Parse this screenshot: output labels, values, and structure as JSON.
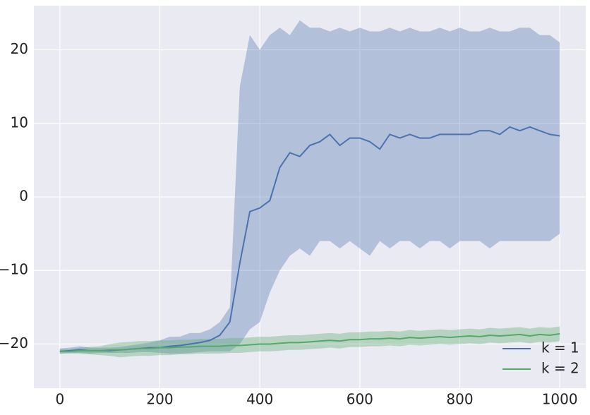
{
  "chart_data": {
    "type": "line",
    "x": [
      0,
      20,
      40,
      60,
      80,
      100,
      120,
      140,
      160,
      180,
      200,
      220,
      240,
      260,
      280,
      300,
      320,
      340,
      360,
      380,
      400,
      420,
      440,
      460,
      480,
      500,
      520,
      540,
      560,
      580,
      600,
      620,
      640,
      660,
      680,
      700,
      720,
      740,
      760,
      780,
      800,
      820,
      840,
      860,
      880,
      900,
      920,
      940,
      960,
      980,
      1000
    ],
    "series": [
      {
        "name": "k = 1",
        "color": "#4c72b0",
        "values": [
          -21,
          -20.9,
          -20.8,
          -20.9,
          -20.9,
          -20.9,
          -20.8,
          -20.7,
          -20.6,
          -20.5,
          -20.5,
          -20.3,
          -20.2,
          -20,
          -19.8,
          -19.5,
          -18.8,
          -17,
          -9,
          -2,
          -1.5,
          -0.5,
          4,
          6,
          5.5,
          7,
          7.5,
          8.5,
          7,
          8,
          8,
          7.5,
          6.5,
          8.5,
          8,
          8.5,
          8,
          8,
          8.5,
          8.5,
          8.5,
          8.5,
          9,
          9,
          8.5,
          9.5,
          9,
          9.5,
          9,
          8.5,
          8.3
        ],
        "upper": [
          -20.6,
          -20.5,
          -20.3,
          -20.5,
          -20.5,
          -20.5,
          -20.4,
          -20.2,
          -20,
          -19.8,
          -19.5,
          -19,
          -19,
          -18.5,
          -18.5,
          -18,
          -17,
          -15,
          15,
          22,
          20,
          22,
          23,
          22,
          24,
          23,
          23,
          22.5,
          23,
          22.5,
          23,
          22.5,
          22.5,
          23,
          22.5,
          23,
          22.5,
          22.5,
          23,
          22.5,
          23,
          22.5,
          22.5,
          23,
          22.5,
          22.5,
          23,
          23,
          22,
          22,
          21
        ],
        "lower": [
          -21.3,
          -21.2,
          -21.2,
          -21.3,
          -21.2,
          -21.2,
          -21.2,
          -21.2,
          -21.1,
          -21.1,
          -21.2,
          -21.3,
          -21.3,
          -21.2,
          -21.1,
          -21,
          -21,
          -21,
          -20,
          -18,
          -17,
          -13,
          -10,
          -8,
          -7,
          -8,
          -6,
          -6,
          -7,
          -6,
          -7,
          -8,
          -6,
          -7,
          -6,
          -6,
          -7,
          -6,
          -6,
          -7,
          -6,
          -6,
          -6,
          -7,
          -6,
          -6,
          -6,
          -6,
          -6,
          -6,
          -5
        ]
      },
      {
        "name": "k = 2",
        "color": "#55a868",
        "values": [
          -21,
          -21,
          -20.9,
          -20.9,
          -20.9,
          -20.8,
          -20.8,
          -20.7,
          -20.6,
          -20.6,
          -20.5,
          -20.5,
          -20.4,
          -20.4,
          -20.3,
          -20.3,
          -20.3,
          -20.2,
          -20.2,
          -20.1,
          -20,
          -20,
          -19.9,
          -19.8,
          -19.8,
          -19.7,
          -19.6,
          -19.5,
          -19.6,
          -19.4,
          -19.4,
          -19.3,
          -19.3,
          -19.2,
          -19.3,
          -19.1,
          -19.2,
          -19.1,
          -19,
          -19.1,
          -19,
          -18.9,
          -19,
          -18.8,
          -18.9,
          -18.8,
          -18.7,
          -18.9,
          -18.7,
          -18.8,
          -18.6
        ],
        "upper": [
          -20.7,
          -20.7,
          -20.5,
          -20.4,
          -20.3,
          -20,
          -19.8,
          -19.7,
          -19.6,
          -19.6,
          -19.5,
          -19.5,
          -19.4,
          -19.4,
          -19.3,
          -19.3,
          -19.3,
          -19.2,
          -19.2,
          -19.1,
          -19,
          -19,
          -18.9,
          -18.8,
          -18.8,
          -18.7,
          -18.6,
          -18.5,
          -18.6,
          -18.4,
          -18.4,
          -18.3,
          -18.3,
          -18.2,
          -18.3,
          -18.1,
          -18.2,
          -18.1,
          -18,
          -18.1,
          -18,
          -17.9,
          -18,
          -17.8,
          -17.9,
          -17.8,
          -17.7,
          -17.9,
          -17.7,
          -17.8,
          -17.6
        ],
        "lower": [
          -21.3,
          -21.3,
          -21.3,
          -21.4,
          -21.5,
          -21.6,
          -21.8,
          -21.7,
          -21.6,
          -21.6,
          -21.5,
          -21.5,
          -21.4,
          -21.4,
          -21.3,
          -21.3,
          -21.3,
          -21.2,
          -21.2,
          -21.1,
          -21,
          -21,
          -20.9,
          -20.8,
          -20.8,
          -20.7,
          -20.6,
          -20.5,
          -20.6,
          -20.4,
          -20.4,
          -20.3,
          -20.3,
          -20.2,
          -20.3,
          -20.1,
          -20.2,
          -20.1,
          -20,
          -20.1,
          -20,
          -19.9,
          -20,
          -19.8,
          -19.9,
          -19.8,
          -19.7,
          -19.9,
          -19.7,
          -19.8,
          -19.6
        ]
      }
    ],
    "xlim": [
      -52,
      1052
    ],
    "ylim": [
      -26,
      26
    ],
    "xticks": [
      0,
      200,
      400,
      600,
      800,
      1000
    ],
    "yticks": [
      {
        "value": -20,
        "label": "−20"
      },
      {
        "value": -10,
        "label": "−10"
      },
      0,
      10,
      20
    ],
    "grid": true,
    "legend": "lower right"
  }
}
